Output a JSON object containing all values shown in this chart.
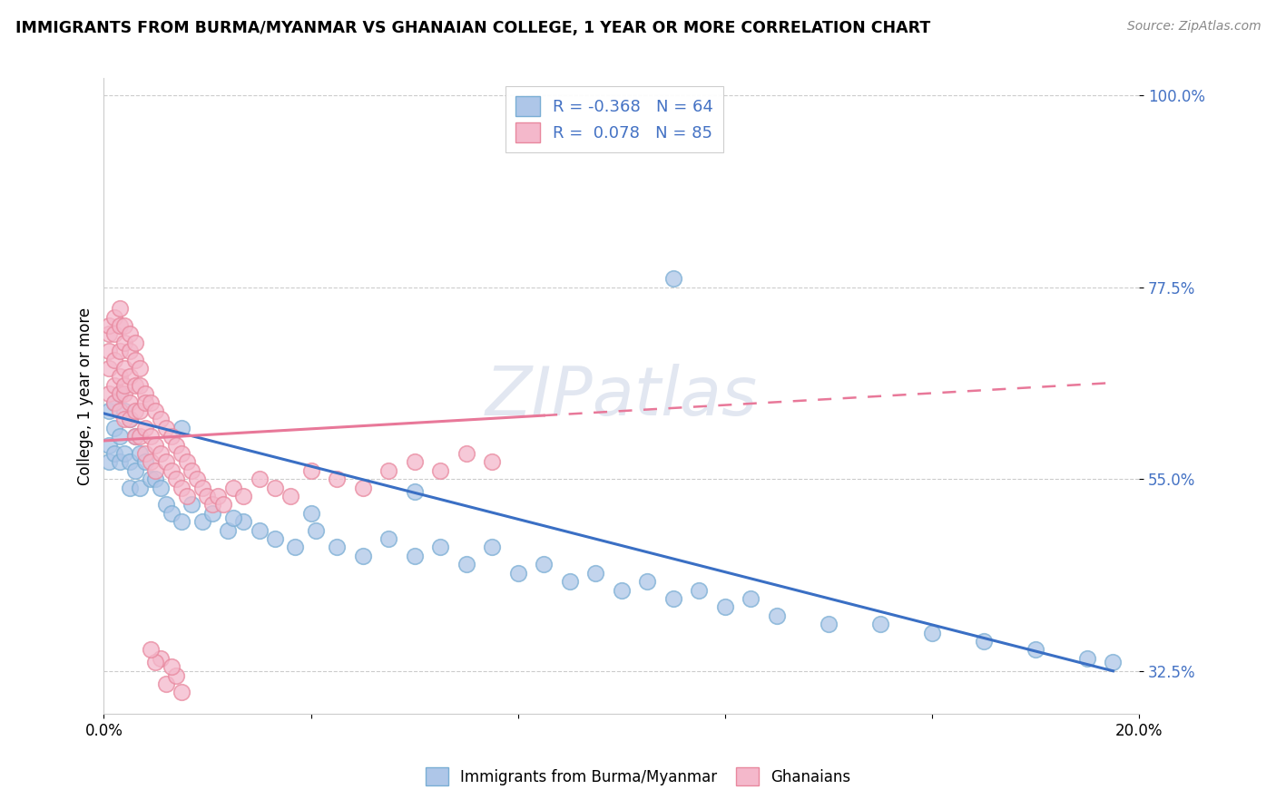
{
  "title": "IMMIGRANTS FROM BURMA/MYANMAR VS GHANAIAN COLLEGE, 1 YEAR OR MORE CORRELATION CHART",
  "source": "Source: ZipAtlas.com",
  "xlabel_bottom": "Immigrants from Burma/Myanmar",
  "xlabel_right": "Ghanaians",
  "ylabel": "College, 1 year or more",
  "xlim": [
    0.0,
    0.2
  ],
  "ylim": [
    0.275,
    1.02
  ],
  "xtick_positions": [
    0.0,
    0.04,
    0.08,
    0.12,
    0.16,
    0.2
  ],
  "xtick_labels": [
    "0.0%",
    "",
    "",
    "",
    "",
    "20.0%"
  ],
  "ytick_positions": [
    0.325,
    0.55,
    0.775,
    1.0
  ],
  "ytick_labels": [
    "32.5%",
    "55.0%",
    "77.5%",
    "100.0%"
  ],
  "blue_face_color": "#aec6e8",
  "blue_edge_color": "#7aaed4",
  "pink_face_color": "#f4b8cb",
  "pink_edge_color": "#e8889e",
  "blue_line_color": "#3a6fc4",
  "pink_line_color": "#e87899",
  "R_blue": -0.368,
  "N_blue": 64,
  "R_pink": 0.078,
  "N_pink": 85,
  "watermark": "ZIPatlas",
  "watermark_fontsize": 54,
  "blue_scatter_x": [
    0.001,
    0.001,
    0.001,
    0.002,
    0.002,
    0.002,
    0.003,
    0.003,
    0.003,
    0.004,
    0.004,
    0.005,
    0.005,
    0.005,
    0.006,
    0.006,
    0.007,
    0.007,
    0.008,
    0.009,
    0.01,
    0.011,
    0.012,
    0.013,
    0.015,
    0.017,
    0.019,
    0.021,
    0.024,
    0.027,
    0.03,
    0.033,
    0.037,
    0.041,
    0.045,
    0.05,
    0.055,
    0.06,
    0.065,
    0.07,
    0.075,
    0.08,
    0.085,
    0.09,
    0.095,
    0.1,
    0.105,
    0.11,
    0.115,
    0.12,
    0.125,
    0.13,
    0.14,
    0.15,
    0.16,
    0.17,
    0.18,
    0.19,
    0.195,
    0.11,
    0.06,
    0.04,
    0.025,
    0.015
  ],
  "blue_scatter_y": [
    0.63,
    0.59,
    0.57,
    0.64,
    0.61,
    0.58,
    0.65,
    0.6,
    0.57,
    0.63,
    0.58,
    0.62,
    0.57,
    0.54,
    0.6,
    0.56,
    0.58,
    0.54,
    0.57,
    0.55,
    0.55,
    0.54,
    0.52,
    0.51,
    0.5,
    0.52,
    0.5,
    0.51,
    0.49,
    0.5,
    0.49,
    0.48,
    0.47,
    0.49,
    0.47,
    0.46,
    0.48,
    0.46,
    0.47,
    0.45,
    0.47,
    0.44,
    0.45,
    0.43,
    0.44,
    0.42,
    0.43,
    0.41,
    0.42,
    0.4,
    0.41,
    0.39,
    0.38,
    0.38,
    0.37,
    0.36,
    0.35,
    0.34,
    0.335,
    0.785,
    0.535,
    0.51,
    0.505,
    0.61
  ],
  "pink_scatter_x": [
    0.001,
    0.001,
    0.001,
    0.001,
    0.001,
    0.002,
    0.002,
    0.002,
    0.002,
    0.002,
    0.003,
    0.003,
    0.003,
    0.003,
    0.003,
    0.003,
    0.004,
    0.004,
    0.004,
    0.004,
    0.004,
    0.004,
    0.005,
    0.005,
    0.005,
    0.005,
    0.005,
    0.006,
    0.006,
    0.006,
    0.006,
    0.006,
    0.007,
    0.007,
    0.007,
    0.007,
    0.008,
    0.008,
    0.008,
    0.008,
    0.009,
    0.009,
    0.009,
    0.01,
    0.01,
    0.01,
    0.011,
    0.011,
    0.012,
    0.012,
    0.013,
    0.013,
    0.014,
    0.014,
    0.015,
    0.015,
    0.016,
    0.016,
    0.017,
    0.018,
    0.019,
    0.02,
    0.021,
    0.022,
    0.023,
    0.025,
    0.027,
    0.03,
    0.033,
    0.036,
    0.04,
    0.045,
    0.05,
    0.055,
    0.06,
    0.065,
    0.07,
    0.075,
    0.012,
    0.014,
    0.011,
    0.013,
    0.015,
    0.01,
    0.009
  ],
  "pink_scatter_y": [
    0.72,
    0.68,
    0.65,
    0.73,
    0.7,
    0.74,
    0.69,
    0.66,
    0.72,
    0.64,
    0.75,
    0.7,
    0.67,
    0.73,
    0.65,
    0.63,
    0.73,
    0.68,
    0.65,
    0.71,
    0.66,
    0.62,
    0.72,
    0.67,
    0.64,
    0.7,
    0.62,
    0.71,
    0.66,
    0.63,
    0.69,
    0.6,
    0.68,
    0.63,
    0.6,
    0.66,
    0.65,
    0.61,
    0.58,
    0.64,
    0.64,
    0.6,
    0.57,
    0.63,
    0.59,
    0.56,
    0.62,
    0.58,
    0.61,
    0.57,
    0.6,
    0.56,
    0.59,
    0.55,
    0.58,
    0.54,
    0.57,
    0.53,
    0.56,
    0.55,
    0.54,
    0.53,
    0.52,
    0.53,
    0.52,
    0.54,
    0.53,
    0.55,
    0.54,
    0.53,
    0.56,
    0.55,
    0.54,
    0.56,
    0.57,
    0.56,
    0.58,
    0.57,
    0.31,
    0.32,
    0.34,
    0.33,
    0.3,
    0.335,
    0.35
  ],
  "blue_line_x": [
    0.0,
    0.195
  ],
  "blue_line_y": [
    0.627,
    0.325
  ],
  "pink_line_x": [
    0.0,
    0.085,
    0.195
  ],
  "pink_line_y": [
    0.595,
    0.648,
    0.663
  ],
  "pink_line_solid_end": 0.085
}
